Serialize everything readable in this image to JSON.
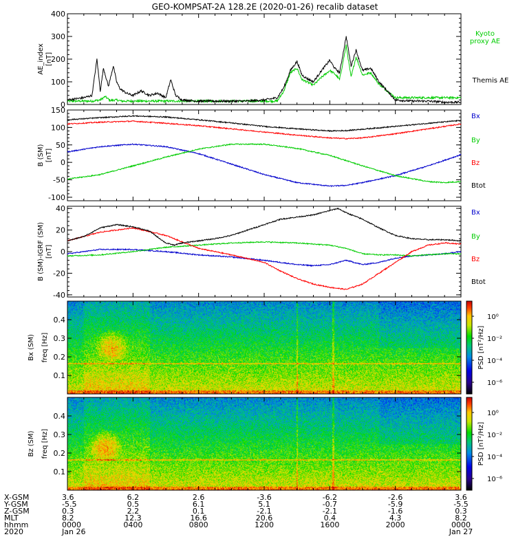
{
  "chart_data": {
    "title": "GEO-KOMPSAT-2A 128.2E (2020-01-26) recalib dataset",
    "x_range_hours": [
      0,
      24
    ],
    "panels": [
      {
        "id": "ae",
        "type": "line",
        "ylabel": "AE_index",
        "yunit": "[nT]",
        "ylim": [
          0,
          400
        ],
        "yticks": [
          0,
          100,
          200,
          300,
          400
        ],
        "series": [
          {
            "name": "Kyoto proxy AE",
            "color": "#00cc00",
            "x": [
              0,
              1.5,
              2.0,
              2.3,
              2.6,
              3.0,
              3.3,
              3.6,
              4.0,
              4.5,
              5.0,
              5.5,
              6.0,
              7.0,
              8.0,
              9.0,
              10.0,
              11.0,
              12.0,
              12.8,
              13.2,
              13.6,
              14.0,
              14.3,
              14.6,
              15.0,
              15.5,
              16.0,
              16.3,
              16.6,
              17.0,
              17.3,
              17.6,
              18.0,
              18.5,
              19.0,
              19.5,
              20.0,
              21.0,
              22.0,
              23.0,
              24.0
            ],
            "y": [
              15,
              15,
              20,
              35,
              18,
              20,
              15,
              15,
              15,
              15,
              15,
              15,
              15,
              15,
              15,
              15,
              15,
              15,
              15,
              15,
              60,
              140,
              160,
              110,
              100,
              85,
              120,
              150,
              135,
              110,
              260,
              120,
              210,
              130,
              140,
              90,
              60,
              30,
              30,
              30,
              30,
              30
            ]
          },
          {
            "name": "Themis AE",
            "color": "#000000",
            "x": [
              0,
              1.0,
              1.5,
              1.8,
              2.0,
              2.2,
              2.5,
              2.8,
              3.0,
              3.2,
              3.6,
              4.0,
              4.5,
              5.0,
              5.5,
              6.0,
              6.3,
              6.6,
              7.0,
              8.0,
              9.0,
              10.0,
              11.0,
              12.0,
              12.8,
              13.2,
              13.6,
              14.0,
              14.3,
              14.6,
              15.0,
              15.5,
              16.0,
              16.3,
              16.6,
              17.0,
              17.3,
              17.6,
              18.0,
              18.5,
              19.0,
              19.5,
              20.0,
              21.0,
              22.0,
              23.0,
              24.0
            ],
            "y": [
              20,
              30,
              40,
              200,
              60,
              160,
              80,
              170,
              100,
              70,
              50,
              40,
              60,
              40,
              50,
              30,
              110,
              40,
              20,
              15,
              15,
              15,
              15,
              20,
              30,
              75,
              150,
              190,
              130,
              115,
              100,
              150,
              195,
              160,
              140,
              300,
              170,
              240,
              150,
              160,
              100,
              60,
              20,
              15,
              15,
              10,
              10
            ]
          }
        ],
        "legend": [
          "Kyoto proxy AE",
          "Themis AE"
        ]
      },
      {
        "id": "bsm",
        "type": "line",
        "ylabel": "B (SM)",
        "yunit": "[nT]",
        "ylim": [
          -110,
          150
        ],
        "yticks": [
          -100,
          -50,
          0,
          50,
          100,
          150
        ],
        "series": [
          {
            "name": "Bx",
            "color": "#0000cc",
            "x": [
              0,
              2,
              4,
              6,
              8,
              10,
              12,
              14,
              16,
              17,
              18,
              20,
              22,
              24
            ],
            "y": [
              30,
              45,
              52,
              45,
              25,
              -5,
              -35,
              -58,
              -68,
              -66,
              -58,
              -38,
              -10,
              22
            ]
          },
          {
            "name": "By",
            "color": "#00cc00",
            "x": [
              0,
              2,
              4,
              6,
              8,
              10,
              12,
              14,
              16,
              18,
              20,
              22,
              23,
              24
            ],
            "y": [
              -48,
              -35,
              -10,
              15,
              38,
              52,
              52,
              40,
              20,
              -10,
              -38,
              -55,
              -58,
              -55
            ]
          },
          {
            "name": "Bz",
            "color": "#ff0000",
            "x": [
              0,
              2,
              4,
              6,
              8,
              10,
              12,
              14,
              16,
              17,
              18,
              20,
              22,
              24
            ],
            "y": [
              110,
              115,
              118,
              112,
              105,
              96,
              87,
              78,
              70,
              68,
              70,
              82,
              96,
              110
            ]
          },
          {
            "name": "Btot",
            "color": "#000000",
            "x": [
              0,
              2,
              4,
              6,
              8,
              10,
              12,
              14,
              16,
              17,
              18,
              20,
              22,
              24
            ],
            "y": [
              122,
              128,
              133,
              130,
              122,
              113,
              103,
              96,
              90,
              91,
              95,
              103,
              112,
              120
            ]
          }
        ],
        "legend": [
          "Bx",
          "By",
          "Bz",
          "Btot"
        ]
      },
      {
        "id": "bsm_igrf",
        "type": "line",
        "ylabel": "B (SM)-IGRF (SM)",
        "yunit": "[nT]",
        "ylim": [
          -42,
          42
        ],
        "yticks": [
          -40,
          -20,
          0,
          20,
          40
        ],
        "series": [
          {
            "name": "Bx",
            "color": "#0000cc",
            "x": [
              0,
              2,
              4,
              6,
              8,
              10,
              12,
              14,
              15,
              16,
              17,
              18,
              19,
              20,
              21,
              22,
              23,
              24
            ],
            "y": [
              -2,
              2,
              2,
              0,
              -3,
              -5,
              -8,
              -12,
              -13,
              -12,
              -8,
              -12,
              -10,
              -6,
              -4,
              -3,
              -2,
              0
            ]
          },
          {
            "name": "By",
            "color": "#00cc00",
            "x": [
              0,
              2,
              4,
              6,
              8,
              10,
              12,
              14,
              15,
              16,
              17,
              18,
              19,
              20,
              21,
              22,
              23,
              24
            ],
            "y": [
              -4,
              -3,
              0,
              4,
              6,
              8,
              9,
              8,
              7,
              6,
              3,
              -2,
              -3,
              -3,
              -4,
              -3,
              -2,
              -2
            ]
          },
          {
            "name": "Bz",
            "color": "#ff0000",
            "x": [
              0,
              2,
              4,
              6,
              8,
              10,
              12,
              13,
              14,
              15,
              16,
              17,
              18,
              19,
              20,
              21,
              22,
              23,
              24
            ],
            "y": [
              10,
              18,
              22,
              15,
              3,
              -3,
              -10,
              -18,
              -25,
              -30,
              -33,
              -35,
              -30,
              -20,
              -10,
              0,
              6,
              8,
              7
            ]
          },
          {
            "name": "Btot",
            "color": "#000000",
            "x": [
              0,
              1,
              2,
              3,
              4,
              5,
              6,
              6.5,
              7,
              8,
              9,
              10,
              11,
              12,
              13,
              14,
              15,
              16,
              16.5,
              17,
              18,
              19,
              20,
              21,
              22,
              23,
              24
            ],
            "y": [
              10,
              14,
              22,
              25,
              23,
              19,
              8,
              6,
              8,
              10,
              12,
              15,
              20,
              25,
              30,
              32,
              34,
              38,
              40,
              36,
              30,
              22,
              15,
              12,
              11,
              11,
              10
            ]
          }
        ],
        "legend": [
          "Bx",
          "By",
          "Bz",
          "Btot"
        ]
      },
      {
        "id": "bx_spec",
        "type": "heatmap",
        "ylabel": "Bx (SM)",
        "yunit": "freq [Hz]",
        "ylim": [
          0,
          0.5
        ],
        "yticks": [
          0.1,
          0.2,
          0.3,
          0.4
        ],
        "colorbar_label": "PSD [nT²/Hz]",
        "colorbar_ticks": [
          "10⁰",
          "10⁻²",
          "10⁻⁴",
          "10⁻⁶"
        ]
      },
      {
        "id": "bz_spec",
        "type": "heatmap",
        "ylabel": "Bz (SM)",
        "yunit": "freq [Hz]",
        "ylim": [
          0,
          0.5
        ],
        "yticks": [
          0.1,
          0.2,
          0.3,
          0.4
        ],
        "colorbar_label": "PSD [nT²/Hz]",
        "colorbar_ticks": [
          "10⁰",
          "10⁻²",
          "10⁻⁴",
          "10⁻⁶"
        ]
      }
    ],
    "footer": {
      "row_labels": [
        "X-GSM",
        "Y-GSM",
        "Z-GSM",
        "MLT",
        "hhmm",
        "2020"
      ],
      "columns": [
        {
          "x": 0,
          "values": [
            "3.6",
            "-5.5",
            "0.3",
            "8.2",
            "0000",
            "Jan 26"
          ]
        },
        {
          "x": 4,
          "values": [
            "6.2",
            "0.5",
            "2.2",
            "12.3",
            "0400",
            ""
          ]
        },
        {
          "x": 8,
          "values": [
            "2.6",
            "6.1",
            "0.1",
            "16.6",
            "0800",
            ""
          ]
        },
        {
          "x": 12,
          "values": [
            "-3.6",
            "5.1",
            "-2.1",
            "20.6",
            "1200",
            ""
          ]
        },
        {
          "x": 16,
          "values": [
            "-6.2",
            "-0.7",
            "-2.1",
            "0.4",
            "1600",
            ""
          ]
        },
        {
          "x": 20,
          "values": [
            "-2.6",
            "-5.9",
            "-1.6",
            "4.3",
            "2000",
            ""
          ]
        },
        {
          "x": 24,
          "values": [
            "3.6",
            "-5.5",
            "0.3",
            "8.2",
            "0000",
            "Jan 27"
          ]
        }
      ]
    }
  }
}
